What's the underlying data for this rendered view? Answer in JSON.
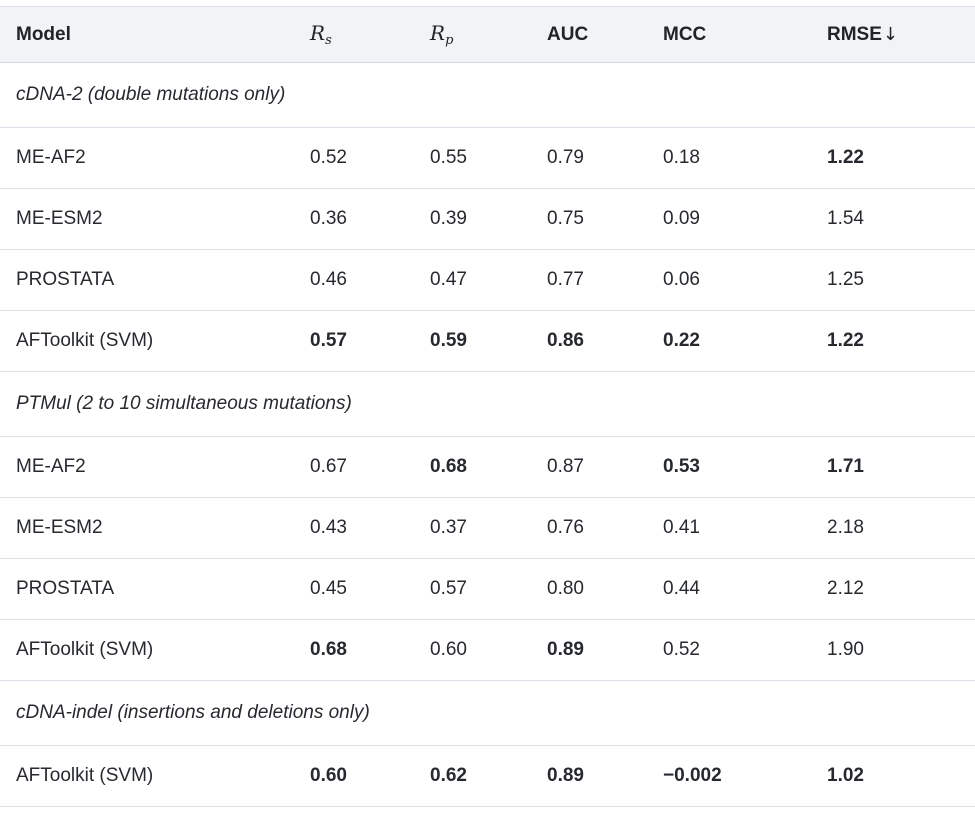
{
  "chart_data": {
    "type": "table",
    "columns": [
      {
        "key": "model",
        "label": "Model"
      },
      {
        "key": "rs",
        "label": "R",
        "sub": "s"
      },
      {
        "key": "rp",
        "label": "R",
        "sub": "p"
      },
      {
        "key": "auc",
        "label": "AUC"
      },
      {
        "key": "mcc",
        "label": "MCC"
      },
      {
        "key": "rmse",
        "label": "RMSE",
        "arrow": "↓"
      }
    ],
    "sections": [
      {
        "title": "cDNA-2 (double mutations only)",
        "rows": [
          {
            "model": "ME-AF2",
            "values": [
              "0.52",
              "0.55",
              "0.79",
              "0.18",
              "1.22"
            ],
            "bold": [
              false,
              false,
              false,
              false,
              true
            ]
          },
          {
            "model": "ME-ESM2",
            "values": [
              "0.36",
              "0.39",
              "0.75",
              "0.09",
              "1.54"
            ],
            "bold": [
              false,
              false,
              false,
              false,
              false
            ]
          },
          {
            "model": "PROSTATA",
            "values": [
              "0.46",
              "0.47",
              "0.77",
              "0.06",
              "1.25"
            ],
            "bold": [
              false,
              false,
              false,
              false,
              false
            ]
          },
          {
            "model": "AFToolkit (SVM)",
            "values": [
              "0.57",
              "0.59",
              "0.86",
              "0.22",
              "1.22"
            ],
            "bold": [
              true,
              true,
              true,
              true,
              true
            ]
          }
        ]
      },
      {
        "title": "PTMul (2 to 10 simultaneous mutations)",
        "rows": [
          {
            "model": "ME-AF2",
            "values": [
              "0.67",
              "0.68",
              "0.87",
              "0.53",
              "1.71"
            ],
            "bold": [
              false,
              true,
              false,
              true,
              true
            ]
          },
          {
            "model": "ME-ESM2",
            "values": [
              "0.43",
              "0.37",
              "0.76",
              "0.41",
              "2.18"
            ],
            "bold": [
              false,
              false,
              false,
              false,
              false
            ]
          },
          {
            "model": "PROSTATA",
            "values": [
              "0.45",
              "0.57",
              "0.80",
              "0.44",
              "2.12"
            ],
            "bold": [
              false,
              false,
              false,
              false,
              false
            ]
          },
          {
            "model": "AFToolkit (SVM)",
            "values": [
              "0.68",
              "0.60",
              "0.89",
              "0.52",
              "1.90"
            ],
            "bold": [
              true,
              false,
              true,
              false,
              false
            ]
          }
        ]
      },
      {
        "title": "cDNA-indel (insertions and deletions only)",
        "rows": [
          {
            "model": "AFToolkit (SVM)",
            "values": [
              "0.60",
              "0.62",
              "0.89",
              "−0.002",
              "1.02"
            ],
            "bold": [
              true,
              true,
              true,
              true,
              true
            ]
          }
        ]
      }
    ]
  },
  "colors": {
    "header_background": "#f2f3f6",
    "header_border": "#d4d8e2",
    "row_border": "#dcdfe8",
    "header_text": "#202327",
    "text": "#26292e"
  }
}
